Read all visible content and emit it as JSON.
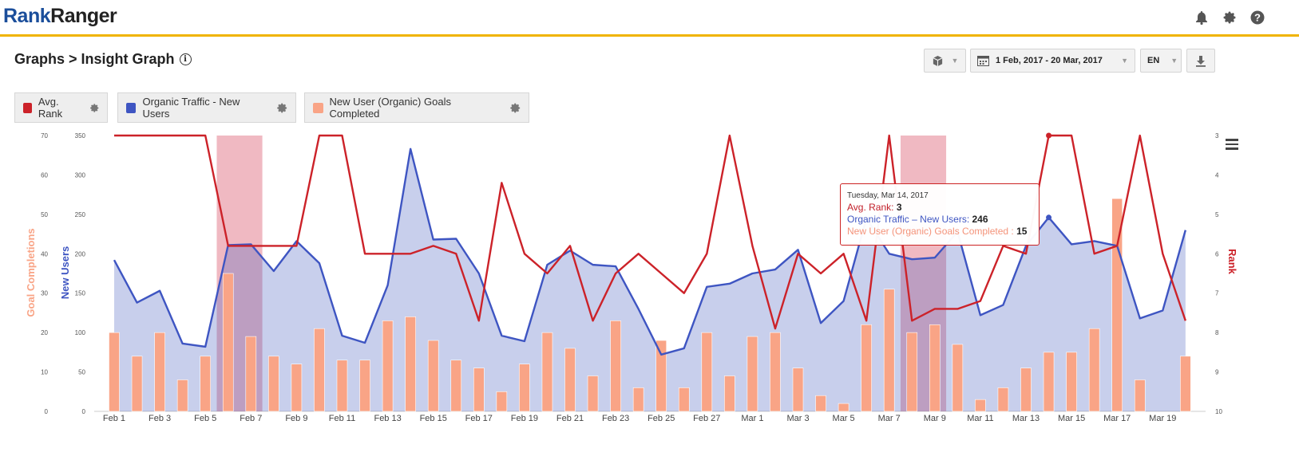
{
  "header": {
    "logo_rank": "Rank",
    "logo_ranger": "Ranger",
    "icons": [
      "bell-icon",
      "gear-icon",
      "help-icon"
    ]
  },
  "breadcrumb": "Graphs > Insight Graph",
  "toolbar": {
    "date_range": "1 Feb, 2017 - 20 Mar, 2017",
    "language": "EN"
  },
  "legend": [
    {
      "label": "Avg. Rank",
      "color": "#cc2229"
    },
    {
      "label": "Organic Traffic - New Users",
      "color": "#3e55c2"
    },
    {
      "label": "New User (Organic) Goals Completed",
      "color": "#f9a486"
    }
  ],
  "tooltip": {
    "date": "Tuesday, Mar 14, 2017",
    "rank_label": "Avg. Rank",
    "rank_value": "3",
    "users_label": "Organic Traffic – New Users",
    "users_value": "246",
    "goals_label": "New User (Organic) Goals Completed",
    "goals_value": "15"
  },
  "chart_data": {
    "type": "bar+line",
    "x_labels": [
      "Feb 1",
      "Feb 3",
      "Feb 5",
      "Feb 7",
      "Feb 9",
      "Feb 11",
      "Feb 13",
      "Feb 15",
      "Feb 17",
      "Feb 19",
      "Feb 21",
      "Feb 23",
      "Feb 25",
      "Feb 27",
      "Mar 1",
      "Mar 3",
      "Mar 5",
      "Mar 7",
      "Mar 9",
      "Mar 11",
      "Mar 13",
      "Mar 15",
      "Mar 17",
      "Mar 19"
    ],
    "days": [
      "Feb 1",
      "Feb 2",
      "Feb 3",
      "Feb 4",
      "Feb 5",
      "Feb 6",
      "Feb 7",
      "Feb 8",
      "Feb 9",
      "Feb 10",
      "Feb 11",
      "Feb 12",
      "Feb 13",
      "Feb 14",
      "Feb 15",
      "Feb 16",
      "Feb 17",
      "Feb 18",
      "Feb 19",
      "Feb 20",
      "Feb 21",
      "Feb 22",
      "Feb 23",
      "Feb 24",
      "Feb 25",
      "Feb 26",
      "Feb 27",
      "Feb 28",
      "Mar 1",
      "Mar 2",
      "Mar 3",
      "Mar 4",
      "Mar 5",
      "Mar 6",
      "Mar 7",
      "Mar 8",
      "Mar 9",
      "Mar 10",
      "Mar 11",
      "Mar 12",
      "Mar 13",
      "Mar 14",
      "Mar 15",
      "Mar 16",
      "Mar 17",
      "Mar 18",
      "Mar 19",
      "Mar 20"
    ],
    "y_left_goals": {
      "label": "Goal Completions",
      "ticks": [
        0,
        10,
        20,
        30,
        40,
        50,
        60,
        70
      ],
      "range": [
        0,
        70
      ],
      "color": "#f9a486"
    },
    "y_left_users": {
      "label": "New Users",
      "ticks": [
        0,
        50,
        100,
        150,
        200,
        250,
        300,
        350
      ],
      "range": [
        0,
        350
      ],
      "color": "#3e55c2"
    },
    "y_right_rank": {
      "label": "Rank",
      "ticks": [
        3,
        4,
        5,
        6,
        7,
        8,
        9,
        10
      ],
      "range": [
        3,
        10
      ],
      "reversed": true,
      "color": "#cc2229"
    },
    "series": [
      {
        "name": "New User (Organic) Goals Completed",
        "type": "bar",
        "axis": "goals",
        "values": [
          20,
          14,
          20,
          8,
          14,
          35,
          19,
          14,
          12,
          21,
          13,
          13,
          23,
          24,
          18,
          13,
          11,
          5,
          12,
          20,
          16,
          9,
          23,
          6,
          18,
          6,
          20,
          9,
          19,
          20,
          11,
          4,
          2,
          22,
          31,
          20,
          22,
          17,
          3,
          6,
          11,
          15,
          15,
          21,
          54,
          8,
          0,
          14
        ]
      },
      {
        "name": "Organic Traffic - New Users",
        "type": "area",
        "axis": "users",
        "values": [
          192,
          138,
          153,
          86,
          82,
          211,
          212,
          178,
          216,
          188,
          96,
          87,
          160,
          333,
          218,
          219,
          175,
          96,
          89,
          186,
          204,
          186,
          184,
          130,
          72,
          80,
          158,
          162,
          175,
          180,
          205,
          112,
          140,
          245,
          200,
          193,
          195,
          228,
          122,
          135,
          210,
          246,
          212,
          216,
          210,
          118,
          128,
          230
        ]
      },
      {
        "name": "Avg. Rank",
        "type": "line",
        "axis": "rank",
        "values": [
          3,
          3,
          3,
          3,
          3,
          5.8,
          5.8,
          5.8,
          5.8,
          3,
          3,
          6,
          6,
          6,
          5.8,
          6,
          7.7,
          4.2,
          6,
          6.5,
          5.8,
          7.7,
          6.5,
          6,
          6.5,
          7,
          6,
          3,
          5.8,
          7.9,
          6,
          6.5,
          6,
          7.7,
          3,
          7.7,
          7.4,
          7.4,
          7.2,
          5.8,
          6,
          3,
          3,
          6,
          5.8,
          3,
          6,
          7.7
        ]
      }
    ],
    "highlight_bands": [
      {
        "from": "Feb 6",
        "to": "Feb 7"
      },
      {
        "from": "Mar 8",
        "to": "Mar 9"
      }
    ],
    "grid": false,
    "legend_position": "top-left"
  }
}
